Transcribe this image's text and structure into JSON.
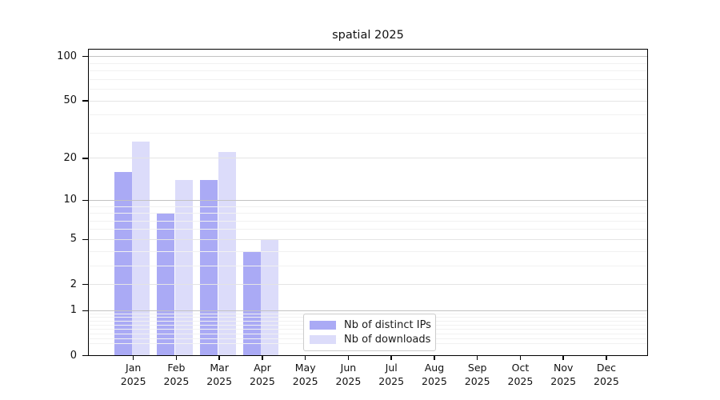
{
  "title": "spatial 2025",
  "chart_data": {
    "type": "bar",
    "title": "spatial 2025",
    "categories": [
      "Jan 2025",
      "Feb 2025",
      "Mar 2025",
      "Apr 2025",
      "May 2025",
      "Jun 2025",
      "Jul 2025",
      "Aug 2025",
      "Sep 2025",
      "Oct 2025",
      "Nov 2025",
      "Dec 2025"
    ],
    "series": [
      {
        "name": "Nb of distinct IPs",
        "color": "#aaaaf5",
        "values": [
          16,
          8,
          14,
          4,
          0,
          0,
          0,
          0,
          0,
          0,
          0,
          0
        ]
      },
      {
        "name": "Nb of downloads",
        "color": "#dcdcfa",
        "values": [
          26,
          14,
          22,
          5,
          0,
          0,
          0,
          0,
          0,
          0,
          0,
          0
        ]
      }
    ],
    "yscale": "log1p",
    "yticks_labeled": [
      0,
      1,
      2,
      5,
      10,
      20,
      50,
      100
    ],
    "yticks_decade": [
      1,
      10,
      100
    ],
    "yticks_minor": [
      0.2,
      0.3,
      0.4,
      0.5,
      0.6,
      0.7,
      0.8,
      0.9,
      3,
      4,
      6,
      7,
      8,
      9,
      30,
      40,
      60,
      70,
      80,
      90
    ],
    "ylim": [
      0,
      112
    ],
    "grid": true,
    "legend_position": "lower center"
  }
}
